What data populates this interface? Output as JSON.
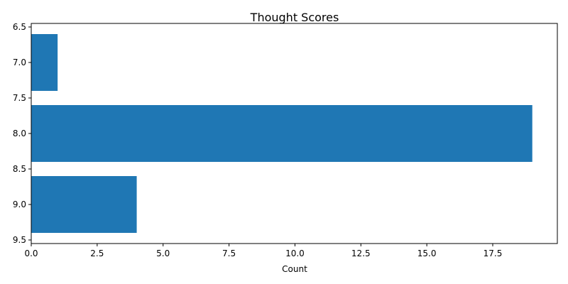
{
  "chart_data": {
    "type": "bar",
    "orientation": "horizontal",
    "title": "Thought Scores",
    "xlabel": "Count",
    "ylabel": "",
    "categories": [
      7.0,
      8.0,
      9.0
    ],
    "values": [
      1,
      19,
      4
    ],
    "xlim": [
      0,
      19.95
    ],
    "ylim": [
      9.55,
      6.45
    ],
    "x_ticks": [
      "0.0",
      "2.5",
      "5.0",
      "7.5",
      "10.0",
      "12.5",
      "15.0",
      "17.5"
    ],
    "y_ticks": [
      "6.5",
      "7.0",
      "7.5",
      "8.0",
      "8.5",
      "9.0",
      "9.5"
    ],
    "bar_color": "#1f77b4",
    "grid": false,
    "legend": "none"
  }
}
